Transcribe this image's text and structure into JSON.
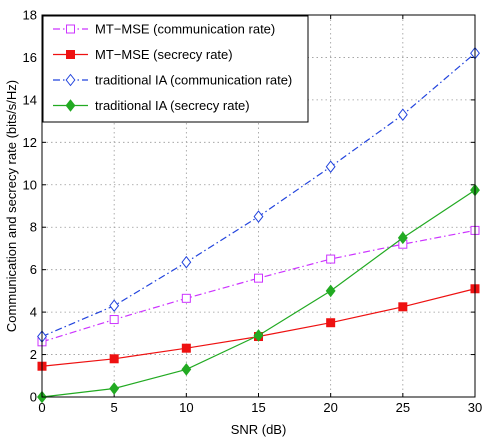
{
  "chart_data": {
    "type": "line",
    "xlabel": "SNR (dB)",
    "ylabel": "Communication and secrecy rate (bits/s/Hz)",
    "xlim": [
      0,
      30
    ],
    "ylim": [
      0,
      18
    ],
    "xticks": [
      0,
      5,
      10,
      15,
      20,
      25,
      30
    ],
    "yticks": [
      0,
      2,
      4,
      6,
      8,
      10,
      12,
      14,
      16,
      18
    ],
    "grid": true,
    "legend_position": "top-left",
    "series": [
      {
        "name": "MT−MSE (communication rate)",
        "x": [
          0,
          5,
          10,
          15,
          20,
          25,
          30
        ],
        "y": [
          2.6,
          3.65,
          4.65,
          5.6,
          6.5,
          7.2,
          7.85
        ],
        "color": "#cc33ff",
        "line": "dashdot",
        "marker": "square-open"
      },
      {
        "name": "MT−MSE (secrecy rate)",
        "x": [
          0,
          5,
          10,
          15,
          20,
          25,
          30
        ],
        "y": [
          1.45,
          1.8,
          2.3,
          2.85,
          3.5,
          4.25,
          5.1
        ],
        "color": "#ee1111",
        "line": "solid",
        "marker": "square-filled"
      },
      {
        "name": "traditional IA (communication rate)",
        "x": [
          0,
          5,
          10,
          15,
          20,
          25,
          30
        ],
        "y": [
          2.85,
          4.3,
          6.35,
          8.5,
          10.85,
          13.3,
          16.2
        ],
        "color": "#2244dd",
        "line": "dashdot",
        "marker": "diamond-open"
      },
      {
        "name": "traditional IA (secrecy rate)",
        "x": [
          0,
          5,
          10,
          15,
          20,
          25,
          30
        ],
        "y": [
          0.0,
          0.4,
          1.3,
          2.9,
          5.0,
          7.5,
          9.75
        ],
        "color": "#22aa22",
        "line": "solid",
        "marker": "diamond-filled"
      }
    ]
  }
}
